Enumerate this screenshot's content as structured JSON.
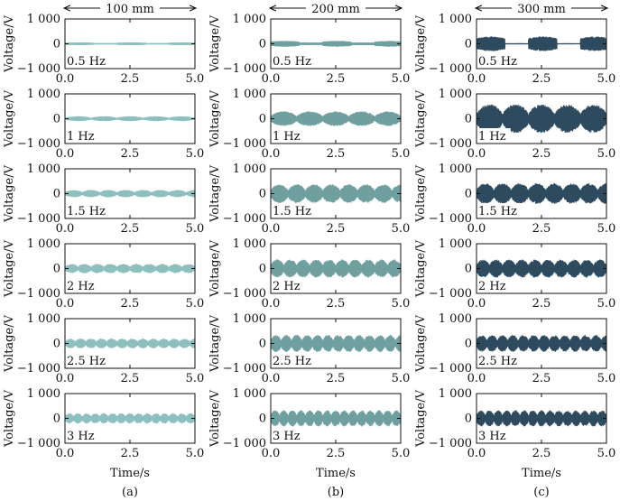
{
  "chart_data": {
    "type": "grid_of_line_plots",
    "time_unit_label": "Time/s",
    "voltage_label": "Voltage/V",
    "x_range": [
      0,
      5
    ],
    "x_ticks": [
      "0.0",
      "2.5",
      "5.0"
    ],
    "y_range": [
      -1000,
      1000
    ],
    "y_ticks": [
      "1 000",
      "0",
      "−1 000"
    ],
    "frequencies": [
      "0.5 Hz",
      "1 Hz",
      "1.5 Hz",
      "2 Hz",
      "2.5 Hz",
      "3 Hz"
    ],
    "columns": [
      {
        "header": "100 mm",
        "caption": "(a)",
        "color": "#8dbfbf",
        "envelope_amplitude_V": [
          60,
          100,
          150,
          190,
          200,
          210
        ]
      },
      {
        "header": "200 mm",
        "caption": "(b)",
        "color": "#6f9f9f",
        "envelope_amplitude_V": [
          120,
          300,
          380,
          370,
          350,
          330
        ]
      },
      {
        "header": "300 mm",
        "caption": "(c)",
        "color": "#2e4a5e",
        "envelope_amplitude_V": [
          300,
          580,
          420,
          370,
          340,
          330
        ]
      }
    ]
  }
}
